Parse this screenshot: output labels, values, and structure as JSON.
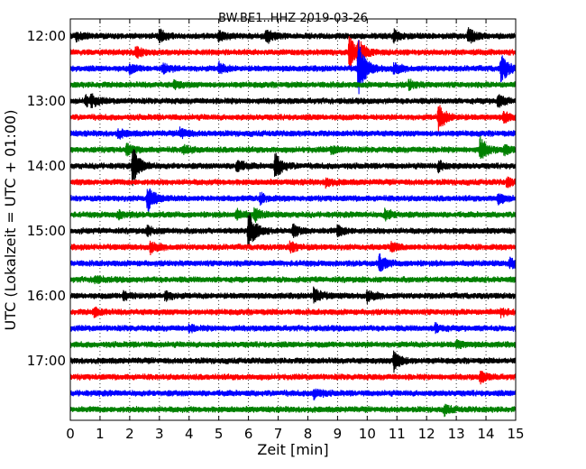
{
  "chart_data": {
    "type": "line",
    "title": "BW.BE1..HHZ 2019-03-26",
    "xlabel": "Zeit  [min]",
    "ylabel": "UTC (Lokalzeit = UTC + 01:00)",
    "xlim": [
      0,
      15
    ],
    "x_ticks": [
      "0",
      "1",
      "2",
      "3",
      "4",
      "5",
      "6",
      "7",
      "8",
      "9",
      "10",
      "11",
      "12",
      "13",
      "14",
      "15"
    ],
    "y_tick_labels": [
      "12:00",
      "13:00",
      "14:00",
      "15:00",
      "16:00",
      "17:00"
    ],
    "grid": "vertical dotted at each minute",
    "trace_interval_min": 15,
    "colors_cycle": [
      "#000000",
      "#ff0000",
      "#0000ff",
      "#008000"
    ],
    "series": [
      {
        "start": "12:00",
        "color": "#000000",
        "events": [
          {
            "t": 0.2,
            "a": 0.25
          },
          {
            "t": 3.0,
            "a": 0.35
          },
          {
            "t": 5.0,
            "a": 0.3
          },
          {
            "t": 6.6,
            "a": 0.45
          },
          {
            "t": 10.9,
            "a": 0.3
          },
          {
            "t": 13.4,
            "a": 0.45
          }
        ]
      },
      {
        "start": "12:15",
        "color": "#ff0000",
        "events": [
          {
            "t": 2.2,
            "a": 0.3
          },
          {
            "t": 9.4,
            "a": 1.0
          },
          {
            "t": 9.7,
            "a": 0.6
          }
        ]
      },
      {
        "start": "12:30",
        "color": "#0000ff",
        "events": [
          {
            "t": 2.0,
            "a": 0.25
          },
          {
            "t": 3.1,
            "a": 0.3
          },
          {
            "t": 5.0,
            "a": 0.3
          },
          {
            "t": 9.7,
            "a": 1.7
          },
          {
            "t": 10.9,
            "a": 0.3
          },
          {
            "t": 14.5,
            "a": 0.9
          }
        ]
      },
      {
        "start": "12:45",
        "color": "#008000",
        "events": [
          {
            "t": 3.5,
            "a": 0.2
          },
          {
            "t": 11.4,
            "a": 0.25
          }
        ]
      },
      {
        "start": "13:00",
        "color": "#000000",
        "events": [
          {
            "t": 0.5,
            "a": 0.3
          },
          {
            "t": 0.7,
            "a": 0.25
          },
          {
            "t": 14.4,
            "a": 0.35
          }
        ]
      },
      {
        "start": "13:15",
        "color": "#ff0000",
        "events": [
          {
            "t": 12.4,
            "a": 0.8
          },
          {
            "t": 14.6,
            "a": 0.3
          }
        ]
      },
      {
        "start": "13:30",
        "color": "#0000ff",
        "events": [
          {
            "t": 1.6,
            "a": 0.25
          },
          {
            "t": 3.7,
            "a": 0.3
          }
        ]
      },
      {
        "start": "13:45",
        "color": "#008000",
        "events": [
          {
            "t": 1.9,
            "a": 0.3
          },
          {
            "t": 3.8,
            "a": 0.25
          },
          {
            "t": 8.8,
            "a": 0.2
          },
          {
            "t": 13.8,
            "a": 0.7
          },
          {
            "t": 14.6,
            "a": 0.25
          }
        ]
      },
      {
        "start": "14:00",
        "color": "#000000",
        "events": [
          {
            "t": 2.1,
            "a": 1.1
          },
          {
            "t": 5.6,
            "a": 0.4
          },
          {
            "t": 6.9,
            "a": 0.8
          },
          {
            "t": 12.4,
            "a": 0.3
          }
        ]
      },
      {
        "start": "14:15",
        "color": "#ff0000",
        "events": [
          {
            "t": 8.6,
            "a": 0.25
          },
          {
            "t": 14.7,
            "a": 0.25
          }
        ]
      },
      {
        "start": "14:30",
        "color": "#0000ff",
        "events": [
          {
            "t": 2.6,
            "a": 0.8
          },
          {
            "t": 6.4,
            "a": 0.25
          },
          {
            "t": 14.4,
            "a": 0.3
          }
        ]
      },
      {
        "start": "14:45",
        "color": "#008000",
        "events": [
          {
            "t": 1.6,
            "a": 0.2
          },
          {
            "t": 5.6,
            "a": 0.3
          },
          {
            "t": 6.2,
            "a": 0.35
          },
          {
            "t": 10.6,
            "a": 0.3
          }
        ]
      },
      {
        "start": "15:00",
        "color": "#000000",
        "events": [
          {
            "t": 2.6,
            "a": 0.25
          },
          {
            "t": 6.0,
            "a": 1.2
          },
          {
            "t": 7.5,
            "a": 0.3
          },
          {
            "t": 9.0,
            "a": 0.3
          }
        ]
      },
      {
        "start": "15:15",
        "color": "#ff0000",
        "events": [
          {
            "t": 2.7,
            "a": 0.3
          },
          {
            "t": 7.4,
            "a": 0.3
          },
          {
            "t": 10.8,
            "a": 0.25
          }
        ]
      },
      {
        "start": "15:30",
        "color": "#0000ff",
        "events": [
          {
            "t": 10.4,
            "a": 0.5
          },
          {
            "t": 14.8,
            "a": 0.3
          }
        ]
      },
      {
        "start": "15:45",
        "color": "#008000",
        "events": [
          {
            "t": 0.8,
            "a": 0.2
          }
        ]
      },
      {
        "start": "16:00",
        "color": "#000000",
        "events": [
          {
            "t": 1.8,
            "a": 0.25
          },
          {
            "t": 3.2,
            "a": 0.25
          },
          {
            "t": 8.2,
            "a": 0.5
          },
          {
            "t": 10.0,
            "a": 0.3
          }
        ]
      },
      {
        "start": "16:15",
        "color": "#ff0000",
        "events": [
          {
            "t": 0.8,
            "a": 0.25
          },
          {
            "t": 14.5,
            "a": 0.2
          }
        ]
      },
      {
        "start": "16:30",
        "color": "#0000ff",
        "events": [
          {
            "t": 4.0,
            "a": 0.15
          },
          {
            "t": 12.3,
            "a": 0.25
          }
        ]
      },
      {
        "start": "16:45",
        "color": "#008000",
        "events": [
          {
            "t": 13.0,
            "a": 0.2
          }
        ]
      },
      {
        "start": "17:00",
        "color": "#000000",
        "events": [
          {
            "t": 10.9,
            "a": 0.6
          }
        ]
      },
      {
        "start": "17:15",
        "color": "#ff0000",
        "events": [
          {
            "t": 13.8,
            "a": 0.3
          }
        ]
      },
      {
        "start": "17:30",
        "color": "#0000ff",
        "events": [
          {
            "t": 8.2,
            "a": 0.3
          }
        ]
      },
      {
        "start": "17:45",
        "color": "#008000",
        "events": [
          {
            "t": 12.6,
            "a": 0.25
          }
        ]
      }
    ]
  }
}
